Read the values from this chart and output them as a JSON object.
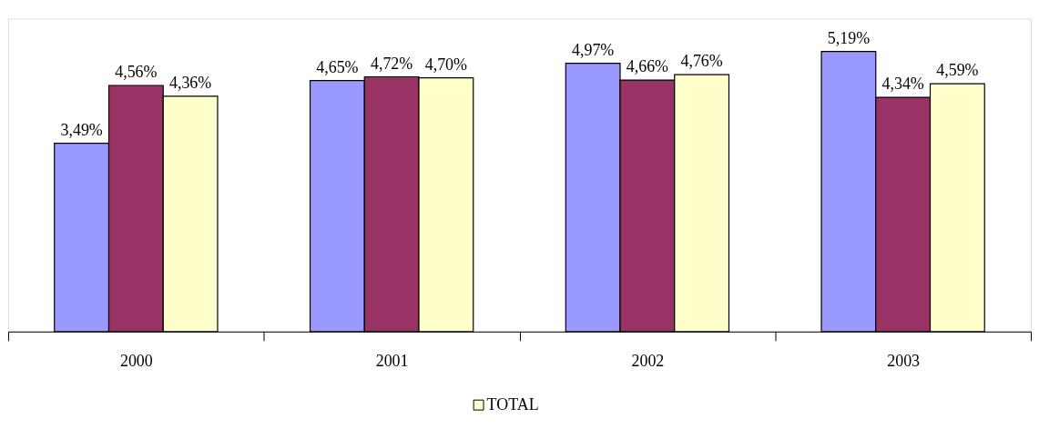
{
  "chart_data": {
    "type": "bar",
    "categories": [
      "2000",
      "2001",
      "2002",
      "2003"
    ],
    "series": [
      {
        "color": "#9999ff",
        "values": [
          3.49,
          4.65,
          4.97,
          5.19
        ],
        "value_labels": [
          "3,49%",
          "4,65%",
          "4,97%",
          "5,19%"
        ]
      },
      {
        "color": "#993366",
        "values": [
          4.56,
          4.72,
          4.66,
          4.34
        ],
        "value_labels": [
          "4,56%",
          "4,72%",
          "4,66%",
          "4,34%"
        ]
      },
      {
        "name": "TOTAL",
        "color": "#ffffcc",
        "values": [
          4.36,
          4.7,
          4.76,
          4.59
        ],
        "value_labels": [
          "4,36%",
          "4,70%",
          "4,76%",
          "4,59%"
        ]
      }
    ],
    "ylim": [
      0,
      5.8
    ],
    "tick_labels": "x",
    "grid": false,
    "legend": "bottom"
  }
}
